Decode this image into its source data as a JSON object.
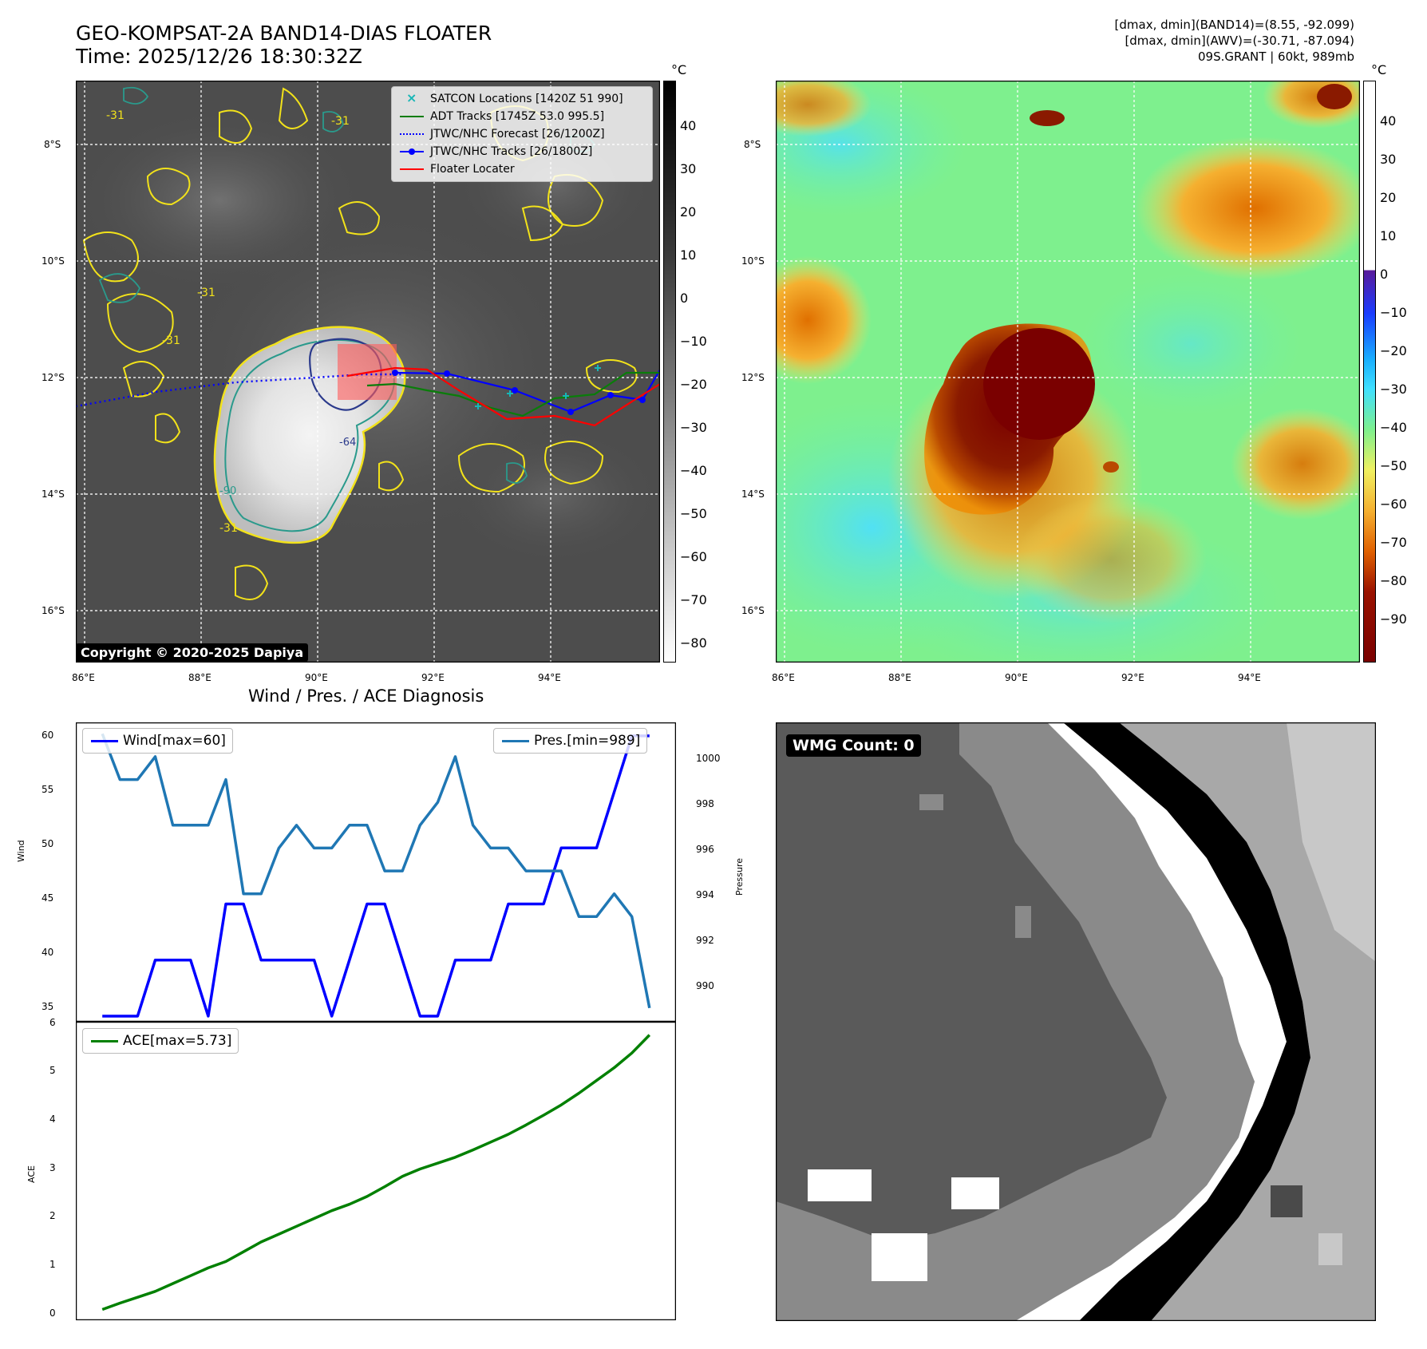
{
  "header": {
    "title_line1": "GEO-KOMPSAT-2A BAND14-DIAS FLOATER",
    "title_line2": "Time: 2025/12/26 18:30:32Z",
    "info_line1": "[dmax, dmin](BAND14)=(8.55, -92.099)",
    "info_line2": "[dmax, dmin](AWV)=(-30.71, -87.094)",
    "info_line3": "09S.GRANT | 60kt, 989mb"
  },
  "map_axes": {
    "lat_labels": [
      "8°S",
      "10°S",
      "12°S",
      "14°S",
      "16°S"
    ],
    "lon_labels": [
      "86°E",
      "88°E",
      "90°E",
      "92°E",
      "94°E"
    ]
  },
  "left_map": {
    "legend": [
      {
        "label": "SATCON Locations [1420Z 51 990]",
        "color": "#17b6b6"
      },
      {
        "label": "ADT Tracks [1745Z 53.0 995.5]",
        "color": "#0a7d0a"
      },
      {
        "label": "JTWC/NHC Forecast [26/1200Z]",
        "color": "#0000ff"
      },
      {
        "label": "JTWC/NHC Tracks [26/1800Z]",
        "color": "#0000ff"
      },
      {
        "label": "Floater Locater",
        "color": "#ff0000"
      }
    ],
    "contour_labels": [
      "-31",
      "-31",
      "-31",
      "-31",
      "-31",
      "-64",
      "-90"
    ],
    "copyright": "Copyright © 2020-2025 Dapiya",
    "colorbar_unit": "°C",
    "colorbar_ticks": [
      "40",
      "30",
      "20",
      "10",
      "0",
      "−10",
      "−20",
      "−30",
      "−40",
      "−50",
      "−60",
      "−70",
      "−80"
    ]
  },
  "right_map": {
    "colorbar_unit": "°C",
    "colorbar_ticks": [
      "40",
      "30",
      "20",
      "10",
      "0",
      "−10",
      "−20",
      "−30",
      "−40",
      "−50",
      "−60",
      "−70",
      "−80",
      "−90"
    ]
  },
  "diagnosis": {
    "title": "Wind / Pres. / ACE Diagnosis",
    "wind_ylabel": "Wind",
    "pres_ylabel": "Pressure",
    "ace_ylabel": "ACE",
    "wind_legend": "Wind[max=60]",
    "pres_legend": "Pres.[min=989]",
    "ace_legend": "ACE[max=5.73]",
    "wind_ticks": [
      "60",
      "55",
      "50",
      "45",
      "40",
      "35"
    ],
    "pres_ticks": [
      "1000",
      "998",
      "996",
      "994",
      "992",
      "990"
    ],
    "ace_ticks": [
      "6",
      "5",
      "4",
      "3",
      "2",
      "1",
      "0"
    ]
  },
  "wmg": {
    "label": "WMG Count: 0"
  },
  "chart_data": [
    {
      "type": "line",
      "title": "Wind / Pres. / ACE Diagnosis",
      "ylabel": "Wind",
      "ylim": [
        34.5,
        61.2
      ],
      "x": [
        0,
        1,
        2,
        3,
        4,
        5,
        6,
        7,
        8,
        9,
        10,
        11,
        12,
        13,
        14,
        15,
        16,
        17,
        18,
        19,
        20,
        21,
        22,
        23,
        24,
        25,
        26,
        27,
        28,
        29,
        30,
        31
      ],
      "series": [
        {
          "name": "Wind[max=60]",
          "color": "#0000ff",
          "values": [
            35,
            35,
            35,
            40,
            40,
            40,
            35,
            45,
            45,
            40,
            40,
            40,
            40,
            35,
            40,
            45,
            45,
            40,
            35,
            35,
            40,
            40,
            40,
            45,
            45,
            45,
            50,
            50,
            50,
            55,
            60,
            60
          ]
        }
      ]
    },
    {
      "type": "line",
      "ylabel": "Pressure",
      "ylim": [
        988.4,
        1001.5
      ],
      "x": [
        0,
        1,
        2,
        3,
        4,
        5,
        6,
        7,
        8,
        9,
        10,
        11,
        12,
        13,
        14,
        15,
        16,
        17,
        18,
        19,
        20,
        21,
        22,
        23,
        24,
        25,
        26,
        27,
        28,
        29,
        30,
        31
      ],
      "series": [
        {
          "name": "Pres.[min=989]",
          "color": "#1f77b4",
          "values": [
            1001,
            999,
            999,
            1000,
            997,
            997,
            997,
            999,
            994,
            994,
            996,
            997,
            996,
            996,
            997,
            997,
            995,
            995,
            997,
            998,
            1000,
            997,
            996,
            996,
            995,
            995,
            995,
            993,
            993,
            994,
            993,
            989
          ]
        }
      ]
    },
    {
      "type": "line",
      "ylabel": "ACE",
      "ylim": [
        -0.1,
        6.0
      ],
      "x": [
        0,
        1,
        2,
        3,
        4,
        5,
        6,
        7,
        8,
        9,
        10,
        11,
        12,
        13,
        14,
        15,
        16,
        17,
        18,
        19,
        20,
        21,
        22,
        23,
        24,
        25,
        26,
        27,
        28,
        29,
        30,
        31
      ],
      "series": [
        {
          "name": "ACE[max=5.73]",
          "color": "#008000",
          "values": [
            0.12,
            0.25,
            0.37,
            0.49,
            0.65,
            0.81,
            0.97,
            1.1,
            1.3,
            1.5,
            1.66,
            1.82,
            1.98,
            2.14,
            2.27,
            2.43,
            2.63,
            2.84,
            2.99,
            3.11,
            3.23,
            3.38,
            3.54,
            3.7,
            3.89,
            4.09,
            4.3,
            4.54,
            4.8,
            5.06,
            5.36,
            5.73
          ]
        }
      ]
    }
  ]
}
